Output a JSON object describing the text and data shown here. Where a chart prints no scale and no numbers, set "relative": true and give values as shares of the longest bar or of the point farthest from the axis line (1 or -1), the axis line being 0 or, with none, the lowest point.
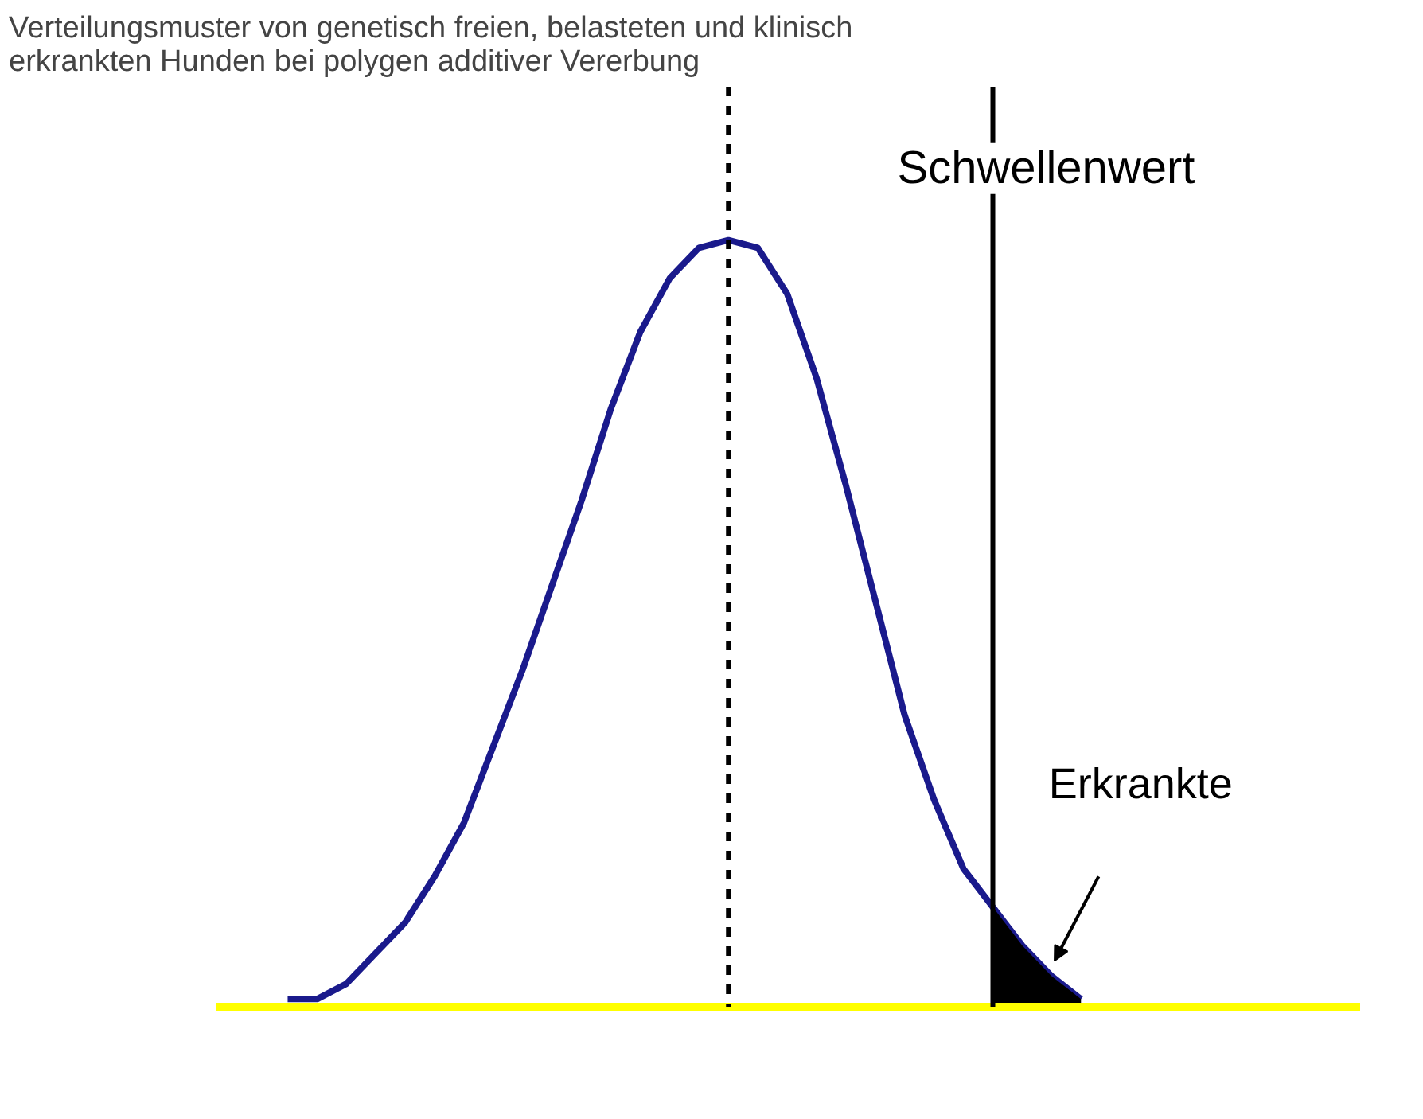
{
  "chart_data": {
    "type": "line",
    "title": "Verteilungsmuster von genetisch freien, belasteten und klinisch erkrankten Hunden bei polygen additiver Vererbung",
    "relative": true,
    "grid": false,
    "line_style": "solid",
    "marker": "none",
    "categories": [
      null,
      null,
      null,
      null,
      null,
      null,
      null,
      null,
      null,
      null,
      null,
      null,
      null,
      null,
      null,
      null,
      null,
      null,
      null,
      null,
      null,
      null,
      null,
      null,
      null,
      null,
      null,
      null
    ],
    "series": [
      {
        "color": "#1a1a8c",
        "values": [
          0.01,
          0.01,
          0.03,
          0.07,
          0.11,
          0.17,
          0.24,
          0.34,
          0.44,
          0.55,
          0.66,
          0.78,
          0.88,
          0.95,
          0.99,
          1,
          0.99,
          0.93,
          0.82,
          0.68,
          0.53,
          0.38,
          0.27,
          0.18,
          0.13,
          0.08,
          0.04,
          0.01
        ]
      },
      {
        "type": "area",
        "color": "#000000",
        "values": [
          null,
          null,
          null,
          null,
          null,
          null,
          null,
          null,
          null,
          null,
          null,
          null,
          null,
          null,
          null,
          null,
          null,
          null,
          null,
          null,
          null,
          null,
          null,
          null,
          0.13,
          0.08,
          0.04,
          0.01
        ]
      }
    ],
    "annotations": [
      "Schwellenwert",
      "Erkrankte"
    ]
  }
}
